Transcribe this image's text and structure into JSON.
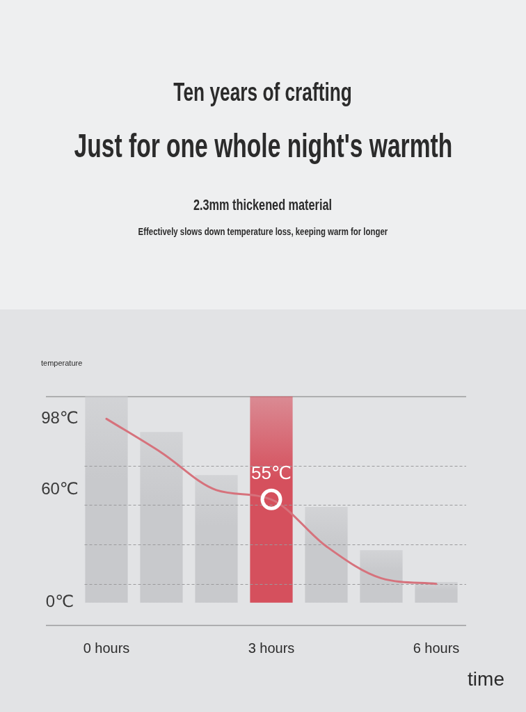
{
  "chart_data": {
    "type": "bar",
    "title": "Ten years of crafting",
    "subtitle": "Just for one whole night's warmth",
    "xlabel": "time",
    "ylabel": "temperature",
    "categories": [
      "0 hours",
      null,
      null,
      "3 hours",
      null,
      null,
      "6 hours"
    ],
    "series": [
      {
        "colors": [
          "#c8c9cc",
          "#c8c9cc",
          "#c8c9cc",
          "#d5505d",
          "#c8c9cc",
          "#c8c9cc",
          "#c8c9cc"
        ],
        "values": [
          110,
          91,
          68,
          110,
          51,
          28,
          11
        ]
      },
      {
        "type": "line",
        "color": "#d6727c",
        "values": [
          98,
          80,
          60,
          55,
          30,
          13,
          10
        ],
        "value_labels": [
          null,
          null,
          null,
          "55℃",
          null,
          null,
          null
        ]
      }
    ],
    "ylim": [
      -12,
      110
    ],
    "yticks": [
      {
        "value": 0,
        "label": "0℃"
      },
      {
        "value": 10,
        "label": null
      },
      {
        "value": 31,
        "label": null
      },
      {
        "value": 52,
        "label": null
      },
      {
        "value": 60,
        "label": "60℃"
      },
      {
        "value": 73,
        "label": null
      },
      {
        "value": 98,
        "label": "98℃"
      }
    ],
    "grid": "y",
    "annotations": [
      "2.3mm thickened material",
      "Effectively slows down temperature loss, keeping warm for longer"
    ]
  }
}
